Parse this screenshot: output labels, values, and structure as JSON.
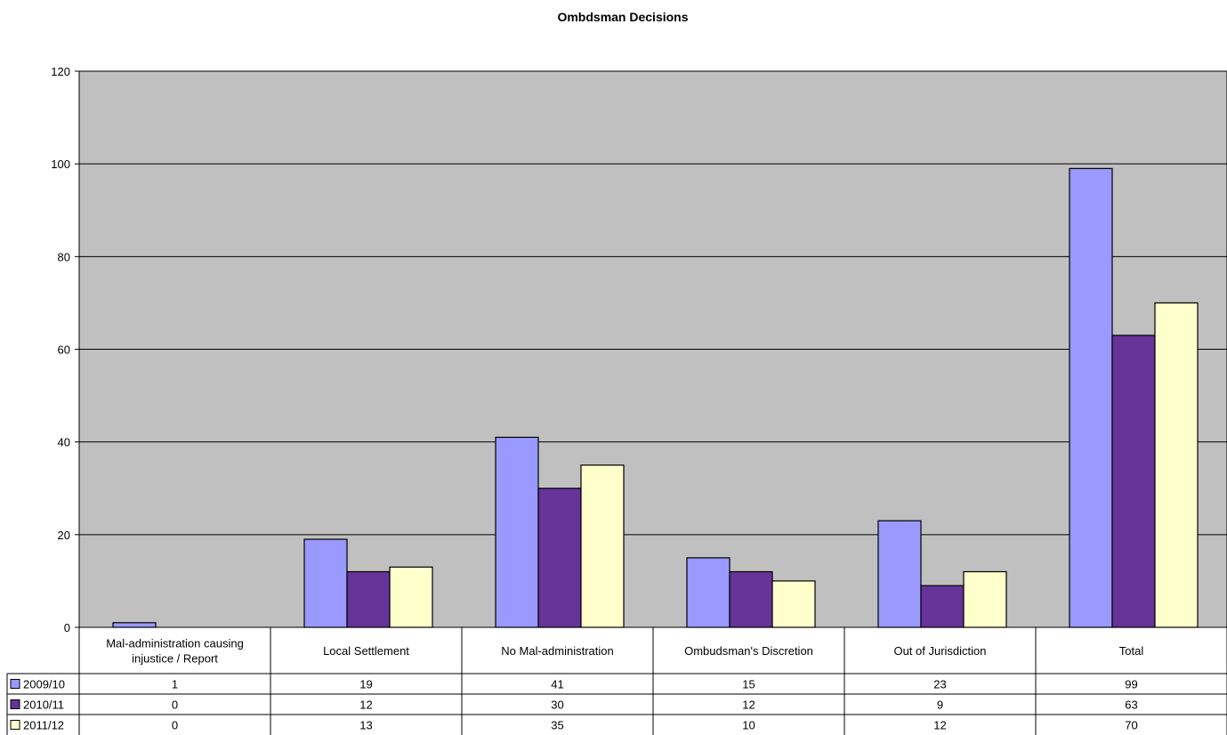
{
  "chart_data": {
    "type": "bar",
    "title": "Ombdsman Decisions",
    "categories": [
      [
        "Mal-administration causing",
        "injustice / Report"
      ],
      [
        "Local Settlement"
      ],
      [
        "No Mal-administration"
      ],
      [
        "Ombudsman's Discretion"
      ],
      [
        "Out of Jurisdiction"
      ],
      [
        "Total"
      ]
    ],
    "series": [
      {
        "name": "2009/10",
        "color": "#9999ff",
        "values": [
          1,
          19,
          41,
          15,
          23,
          99
        ]
      },
      {
        "name": "2010/11",
        "color": "#663399",
        "values": [
          0,
          12,
          30,
          12,
          9,
          63
        ]
      },
      {
        "name": "2011/12",
        "color": "#ffffcc",
        "values": [
          0,
          13,
          35,
          10,
          12,
          70
        ]
      }
    ],
    "ylim": [
      0,
      120
    ],
    "yticks": [
      0,
      20,
      40,
      60,
      80,
      100,
      120
    ],
    "grid": true,
    "plot_background": "#c0c0c0",
    "legend": "data-table"
  }
}
